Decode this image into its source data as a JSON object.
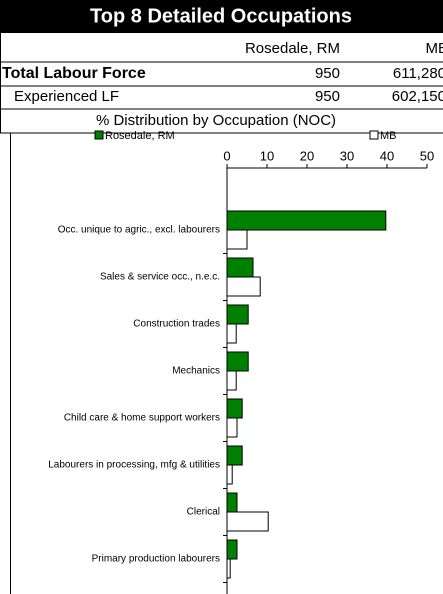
{
  "header": {
    "title": "Top 8 Detailed Occupations",
    "columns": [
      "Rosedale, RM",
      "MB"
    ],
    "rows": [
      {
        "label": "Total Labour Force",
        "values": [
          "950",
          "611,280"
        ]
      },
      {
        "label": "Experienced LF",
        "values": [
          "950",
          "602,150"
        ]
      }
    ],
    "subtitle": "% Distribution by Occupation (NOC)"
  },
  "chart_data": {
    "type": "hbar",
    "categories": [
      "Occ. unique to agric., excl. labourers",
      "Sales & service occ., n.e.c.",
      "Construction trades",
      "Mechanics",
      "Child care & home support workers",
      "Labourers in processing, mfg & utilities",
      "Clerical",
      "Primary production labourers"
    ],
    "series": [
      {
        "name": "Rosedale, RM",
        "color": "#008000",
        "values": [
          39.7,
          6.5,
          5.3,
          5.3,
          3.8,
          3.8,
          2.5,
          2.5
        ]
      },
      {
        "name": "MB",
        "color": "#ffffff",
        "values": [
          5.0,
          8.3,
          2.3,
          2.3,
          2.5,
          1.3,
          10.3,
          0.8
        ]
      }
    ],
    "xlim": [
      0,
      50
    ],
    "xticks": [
      0,
      10,
      20,
      30,
      40,
      50
    ],
    "legend": "top"
  }
}
